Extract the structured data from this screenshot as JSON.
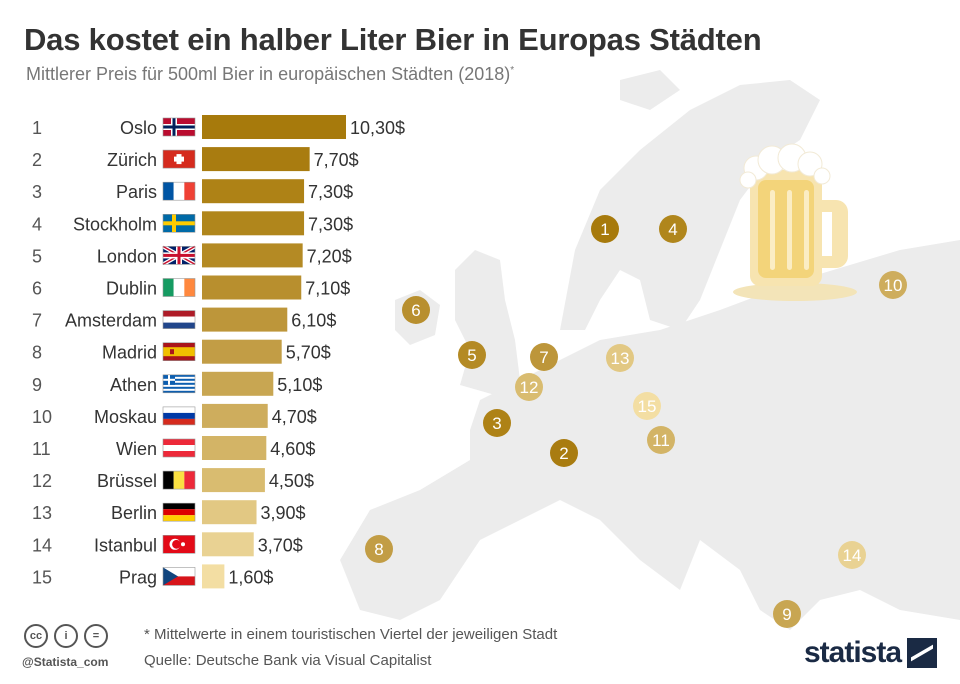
{
  "header": {
    "title": "Das kostet ein halber Liter Bier in Europas Städten",
    "subtitle": "Mittlerer Preis für 500ml Bier in europäischen Städten (2018)",
    "subtitle_mark": "*"
  },
  "chart_data": {
    "type": "bar",
    "orientation": "horizontal",
    "unit": "$",
    "xlim": [
      0,
      10.3
    ],
    "categories": [
      "Oslo",
      "Zürich",
      "Paris",
      "Stockholm",
      "London",
      "Dublin",
      "Amsterdam",
      "Madrid",
      "Athen",
      "Moskau",
      "Wien",
      "Brüssel",
      "Berlin",
      "Istanbul",
      "Prag"
    ],
    "ranks": [
      "1",
      "2",
      "3",
      "4",
      "5",
      "6",
      "7",
      "8",
      "9",
      "10",
      "11",
      "12",
      "13",
      "14",
      "15"
    ],
    "values": [
      10.3,
      7.7,
      7.3,
      7.3,
      7.2,
      7.1,
      6.1,
      5.7,
      5.1,
      4.7,
      4.6,
      4.5,
      3.9,
      3.7,
      1.6
    ],
    "value_labels": [
      "10,30$",
      "7,70$",
      "7,30$",
      "7,30$",
      "7,20$",
      "7,10$",
      "6,10$",
      "5,70$",
      "5,10$",
      "4,70$",
      "4,60$",
      "4,50$",
      "3,90$",
      "3,70$",
      "1,60$"
    ],
    "flags": [
      "norway",
      "switzerland",
      "france",
      "sweden",
      "uk",
      "ireland",
      "netherlands",
      "spain",
      "greece",
      "russia",
      "austria",
      "belgium",
      "germany",
      "turkey",
      "czechia"
    ],
    "colors": [
      "#a77a0c",
      "#a97c10",
      "#ae8216",
      "#b0861c",
      "#b48a24",
      "#b88f2e",
      "#bd963a",
      "#c29d45",
      "#c8a652",
      "#cead5d",
      "#d3b466",
      "#d9bc70",
      "#e2c883",
      "#e9d293",
      "#f3dea3"
    ]
  },
  "footer": {
    "footnote": "* Mittelwerte in einem touristischen Viertel der jeweiligen Stadt",
    "source": "Quelle: Deutsche Bank via Visual Capitalist",
    "handle": "@Statista_com",
    "logo": "statista",
    "cc_icons": [
      "cc",
      "by",
      "nd"
    ],
    "cc_glyphs": [
      "cc",
      "i",
      "="
    ]
  }
}
